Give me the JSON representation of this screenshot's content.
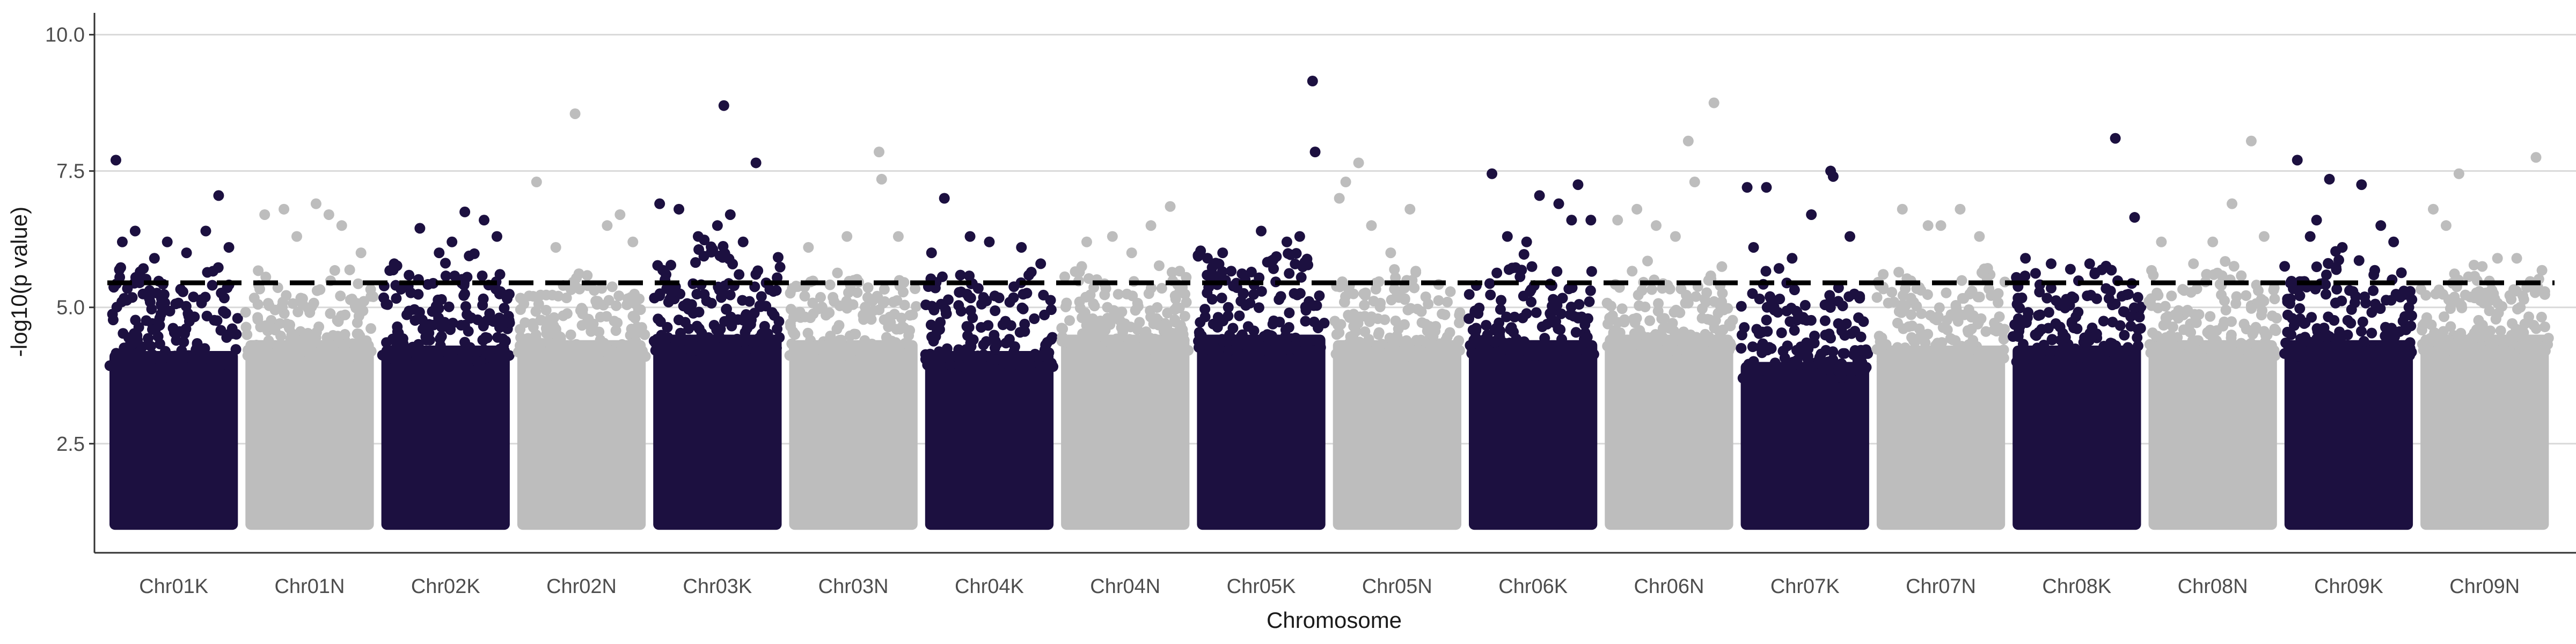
{
  "chart_data": {
    "type": "scatter",
    "subtype": "manhattan",
    "xlabel": "Chromosome",
    "ylabel": "-log10(p value)",
    "ylim": [
      0.5,
      10.4
    ],
    "yticks": [
      2.5,
      5.0,
      7.5,
      10.0
    ],
    "ytick_labels": [
      "2.5",
      "5.0",
      "7.5",
      "10.0"
    ],
    "grid": "horizontal-major",
    "significance_threshold": 5.45,
    "point_colors": [
      "#1c1040",
      "#bdbdbd"
    ],
    "categories": [
      "Chr01K",
      "Chr01N",
      "Chr02K",
      "Chr02N",
      "Chr03K",
      "Chr03N",
      "Chr04K",
      "Chr04N",
      "Chr05K",
      "Chr05N",
      "Chr06K",
      "Chr06N",
      "Chr07K",
      "Chr07N",
      "Chr08K",
      "Chr08N",
      "Chr09K",
      "Chr09N"
    ],
    "series": [
      {
        "chromosome": "Chr01K",
        "color_index": 0,
        "dense_top": 4.2,
        "scatter_top": 5.6,
        "min_p": 1.0,
        "peaks": [
          [
            0.05,
            7.7
          ],
          [
            0.2,
            6.4
          ],
          [
            0.45,
            6.2
          ],
          [
            0.75,
            6.4
          ],
          [
            0.85,
            7.05
          ],
          [
            0.93,
            6.1
          ],
          [
            0.35,
            5.9
          ],
          [
            0.6,
            6.0
          ],
          [
            0.1,
            6.2
          ]
        ]
      },
      {
        "chromosome": "Chr01N",
        "color_index": 1,
        "dense_top": 4.4,
        "scatter_top": 5.5,
        "min_p": 1.0,
        "peaks": [
          [
            0.15,
            6.7
          ],
          [
            0.3,
            6.8
          ],
          [
            0.55,
            6.9
          ],
          [
            0.65,
            6.7
          ],
          [
            0.75,
            6.5
          ],
          [
            0.4,
            6.3
          ],
          [
            0.9,
            6.0
          ]
        ]
      },
      {
        "chromosome": "Chr02K",
        "color_index": 0,
        "dense_top": 4.3,
        "scatter_top": 5.8,
        "min_p": 1.0,
        "peaks": [
          [
            0.1,
            5.8
          ],
          [
            0.3,
            6.45
          ],
          [
            0.55,
            6.2
          ],
          [
            0.65,
            6.75
          ],
          [
            0.8,
            6.6
          ],
          [
            0.9,
            6.3
          ],
          [
            0.45,
            6.0
          ]
        ]
      },
      {
        "chromosome": "Chr02N",
        "color_index": 1,
        "dense_top": 4.4,
        "scatter_top": 5.5,
        "min_p": 1.0,
        "peaks": [
          [
            0.15,
            7.3
          ],
          [
            0.45,
            8.55
          ],
          [
            0.7,
            6.5
          ],
          [
            0.8,
            6.7
          ],
          [
            0.9,
            6.2
          ],
          [
            0.3,
            6.1
          ]
        ]
      },
      {
        "chromosome": "Chr03K",
        "color_index": 0,
        "dense_top": 4.5,
        "scatter_top": 6.0,
        "min_p": 1.0,
        "peaks": [
          [
            0.05,
            6.9
          ],
          [
            0.2,
            6.8
          ],
          [
            0.35,
            6.3
          ],
          [
            0.55,
            8.7
          ],
          [
            0.6,
            6.7
          ],
          [
            0.8,
            7.65
          ],
          [
            0.5,
            6.5
          ],
          [
            0.7,
            6.2
          ]
        ]
      },
      {
        "chromosome": "Chr03N",
        "color_index": 1,
        "dense_top": 4.4,
        "scatter_top": 5.6,
        "min_p": 1.0,
        "peaks": [
          [
            0.15,
            6.1
          ],
          [
            0.45,
            6.3
          ],
          [
            0.7,
            7.85
          ],
          [
            0.72,
            7.35
          ],
          [
            0.85,
            6.3
          ]
        ]
      },
      {
        "chromosome": "Chr04K",
        "color_index": 0,
        "dense_top": 4.2,
        "scatter_top": 5.5,
        "min_p": 1.0,
        "peaks": [
          [
            0.05,
            6.0
          ],
          [
            0.15,
            7.0
          ],
          [
            0.35,
            6.3
          ],
          [
            0.5,
            6.2
          ],
          [
            0.75,
            6.1
          ],
          [
            0.9,
            5.8
          ]
        ]
      },
      {
        "chromosome": "Chr04N",
        "color_index": 1,
        "dense_top": 4.5,
        "scatter_top": 5.6,
        "min_p": 1.0,
        "peaks": [
          [
            0.2,
            6.2
          ],
          [
            0.4,
            6.3
          ],
          [
            0.7,
            6.5
          ],
          [
            0.85,
            6.85
          ],
          [
            0.55,
            6.0
          ]
        ]
      },
      {
        "chromosome": "Chr05K",
        "color_index": 0,
        "dense_top": 4.5,
        "scatter_top": 5.9,
        "min_p": 1.0,
        "peaks": [
          [
            0.2,
            6.0
          ],
          [
            0.5,
            6.4
          ],
          [
            0.7,
            6.2
          ],
          [
            0.9,
            9.15
          ],
          [
            0.92,
            7.85
          ],
          [
            0.8,
            6.3
          ]
        ]
      },
      {
        "chromosome": "Chr05N",
        "color_index": 1,
        "dense_top": 4.4,
        "scatter_top": 5.6,
        "min_p": 1.0,
        "peaks": [
          [
            0.05,
            7.0
          ],
          [
            0.1,
            7.3
          ],
          [
            0.2,
            7.65
          ],
          [
            0.3,
            6.5
          ],
          [
            0.6,
            6.8
          ],
          [
            0.45,
            6.0
          ]
        ]
      },
      {
        "chromosome": "Chr06K",
        "color_index": 0,
        "dense_top": 4.4,
        "scatter_top": 5.8,
        "min_p": 1.0,
        "peaks": [
          [
            0.18,
            7.45
          ],
          [
            0.3,
            6.3
          ],
          [
            0.55,
            7.05
          ],
          [
            0.7,
            6.9
          ],
          [
            0.85,
            7.25
          ],
          [
            0.95,
            6.6
          ],
          [
            0.45,
            6.2
          ],
          [
            0.8,
            6.6
          ]
        ]
      },
      {
        "chromosome": "Chr06N",
        "color_index": 1,
        "dense_top": 4.5,
        "scatter_top": 5.7,
        "min_p": 1.0,
        "peaks": [
          [
            0.1,
            6.6
          ],
          [
            0.25,
            6.8
          ],
          [
            0.4,
            6.5
          ],
          [
            0.65,
            8.05
          ],
          [
            0.85,
            8.75
          ],
          [
            0.7,
            7.3
          ],
          [
            0.55,
            6.3
          ]
        ]
      },
      {
        "chromosome": "Chr07K",
        "color_index": 0,
        "dense_top": 4.0,
        "scatter_top": 5.5,
        "min_p": 1.0,
        "peaks": [
          [
            0.05,
            7.2
          ],
          [
            0.1,
            6.1
          ],
          [
            0.2,
            7.2
          ],
          [
            0.55,
            6.7
          ],
          [
            0.7,
            7.5
          ],
          [
            0.72,
            7.4
          ],
          [
            0.85,
            6.3
          ],
          [
            0.4,
            5.9
          ]
        ]
      },
      {
        "chromosome": "Chr07N",
        "color_index": 1,
        "dense_top": 4.3,
        "scatter_top": 5.5,
        "min_p": 1.0,
        "peaks": [
          [
            0.2,
            6.8
          ],
          [
            0.4,
            6.5
          ],
          [
            0.5,
            6.5
          ],
          [
            0.65,
            6.8
          ],
          [
            0.8,
            6.3
          ]
        ]
      },
      {
        "chromosome": "Chr08K",
        "color_index": 0,
        "dense_top": 4.3,
        "scatter_top": 5.6,
        "min_p": 1.0,
        "peaks": [
          [
            0.1,
            5.9
          ],
          [
            0.3,
            5.8
          ],
          [
            0.6,
            5.8
          ],
          [
            0.8,
            8.1
          ],
          [
            0.95,
            6.65
          ],
          [
            0.45,
            5.7
          ]
        ]
      },
      {
        "chromosome": "Chr08N",
        "color_index": 1,
        "dense_top": 4.4,
        "scatter_top": 5.6,
        "min_p": 1.0,
        "peaks": [
          [
            0.1,
            6.2
          ],
          [
            0.35,
            5.8
          ],
          [
            0.5,
            6.2
          ],
          [
            0.65,
            6.9
          ],
          [
            0.8,
            8.05
          ],
          [
            0.9,
            6.3
          ]
        ]
      },
      {
        "chromosome": "Chr09K",
        "color_index": 0,
        "dense_top": 4.4,
        "scatter_top": 5.9,
        "min_p": 1.0,
        "peaks": [
          [
            0.1,
            7.7
          ],
          [
            0.25,
            6.6
          ],
          [
            0.35,
            7.35
          ],
          [
            0.45,
            6.1
          ],
          [
            0.6,
            7.25
          ],
          [
            0.75,
            6.5
          ],
          [
            0.85,
            6.2
          ],
          [
            0.2,
            6.3
          ]
        ]
      },
      {
        "chromosome": "Chr09N",
        "color_index": 1,
        "dense_top": 4.5,
        "scatter_top": 5.6,
        "min_p": 1.0,
        "peaks": [
          [
            0.1,
            6.8
          ],
          [
            0.2,
            6.5
          ],
          [
            0.3,
            7.45
          ],
          [
            0.6,
            5.9
          ],
          [
            0.9,
            7.75
          ],
          [
            0.75,
            5.9
          ]
        ]
      }
    ]
  }
}
